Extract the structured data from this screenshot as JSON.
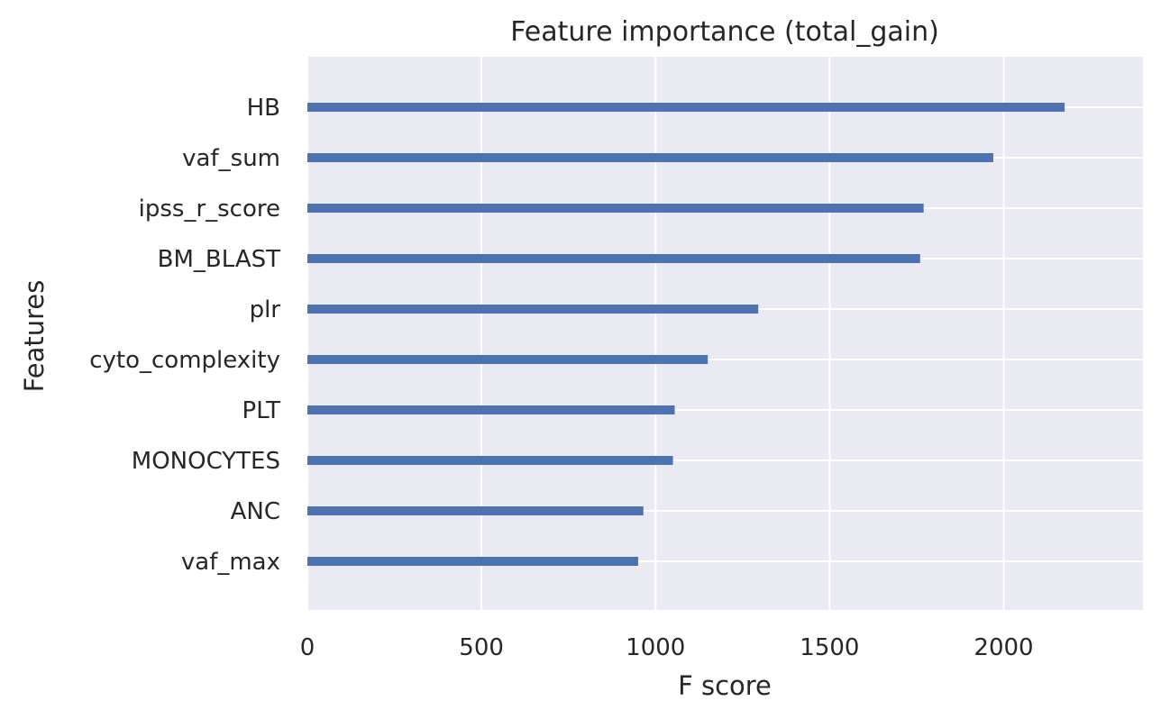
{
  "chart_data": {
    "type": "bar",
    "orientation": "horizontal",
    "title": "Feature importance (total_gain)",
    "xlabel": "F score",
    "ylabel": "Features",
    "categories": [
      "vaf_max",
      "ANC",
      "MONOCYTES",
      "PLT",
      "cyto_complexity",
      "plr",
      "BM_BLAST",
      "ipss_r_score",
      "vaf_sum",
      "HB"
    ],
    "values": [
      950,
      965,
      1050,
      1055,
      1150,
      1295,
      1760,
      1770,
      1970,
      2175
    ],
    "xlim": [
      0,
      2400
    ],
    "xticks": [
      0,
      500,
      1000,
      1500,
      2000
    ],
    "xtick_labels": [
      "0",
      "500",
      "1000",
      "1500",
      "2000"
    ],
    "grid": true,
    "colors": {
      "bar": "#4c72b0",
      "plot_background": "#eaeaf2",
      "grid": "#ffffff",
      "text": "#262626"
    }
  }
}
